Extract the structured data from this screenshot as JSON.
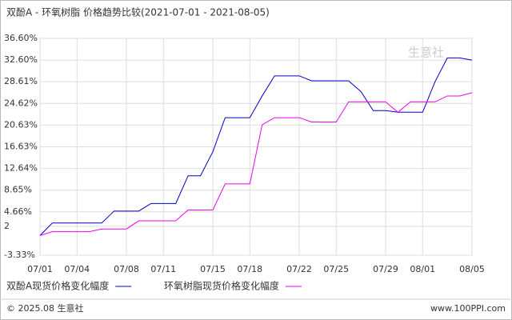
{
  "chart_data": {
    "type": "line",
    "title": "双酚A - 环氧树脂 价格趋势比较(2021-07-01 - 2021-08-05)",
    "watermark": "生意社",
    "footer_left": "© 2025.08 生意社",
    "footer_right": "www.100PPI.com",
    "categories": [
      "07/01",
      null,
      null,
      "07/04",
      null,
      null,
      null,
      "07/08",
      null,
      null,
      "07/11",
      null,
      null,
      null,
      "07/15",
      null,
      null,
      "07/18",
      null,
      null,
      null,
      "07/22",
      null,
      null,
      "07/25",
      null,
      null,
      null,
      "07/29",
      null,
      null,
      "08/01",
      null,
      null,
      null,
      "08/05"
    ],
    "series": [
      {
        "name": "双酚A现货价格变化幅度",
        "color": "#0000cc",
        "values": [
          0.3,
          2.6,
          2.6,
          2.6,
          2.6,
          2.6,
          4.8,
          4.8,
          4.8,
          6.2,
          6.2,
          6.2,
          11.3,
          11.3,
          15.7,
          22.0,
          22.0,
          22.0,
          26.0,
          29.7,
          29.7,
          29.7,
          28.8,
          28.8,
          28.8,
          28.8,
          26.8,
          23.3,
          23.3,
          23.0,
          23.0,
          23.0,
          28.6,
          33.0,
          33.0,
          32.6
        ]
      },
      {
        "name": "环氧树脂现货价格变化幅度",
        "color": "#ee00ee",
        "values": [
          0.3,
          1.0,
          1.0,
          1.0,
          1.0,
          1.5,
          1.5,
          1.5,
          3.0,
          3.0,
          3.0,
          3.0,
          5.0,
          5.0,
          5.0,
          9.8,
          9.8,
          9.8,
          20.7,
          22.0,
          22.0,
          22.0,
          21.2,
          21.2,
          21.2,
          24.9,
          24.9,
          24.9,
          24.9,
          23.0,
          24.9,
          24.9,
          24.9,
          26.0,
          26.0,
          26.6
        ]
      }
    ],
    "ylim": [
      -3.33,
      36.6
    ],
    "yticks": [
      {
        "value": -3.33,
        "label": "-3.33%"
      },
      2,
      {
        "value": 4.66,
        "label": "4.66%"
      },
      {
        "value": 8.65,
        "label": "8.65%"
      },
      {
        "value": 12.64,
        "label": "12.64%"
      },
      {
        "value": 16.63,
        "label": "16.63%"
      },
      {
        "value": 20.63,
        "label": "20.63%"
      },
      {
        "value": 24.62,
        "label": "24.62%"
      },
      {
        "value": 28.61,
        "label": "28.61%"
      },
      {
        "value": 32.6,
        "label": "32.60%"
      },
      {
        "value": 36.6,
        "label": "36.60%"
      }
    ],
    "grid": true
  }
}
